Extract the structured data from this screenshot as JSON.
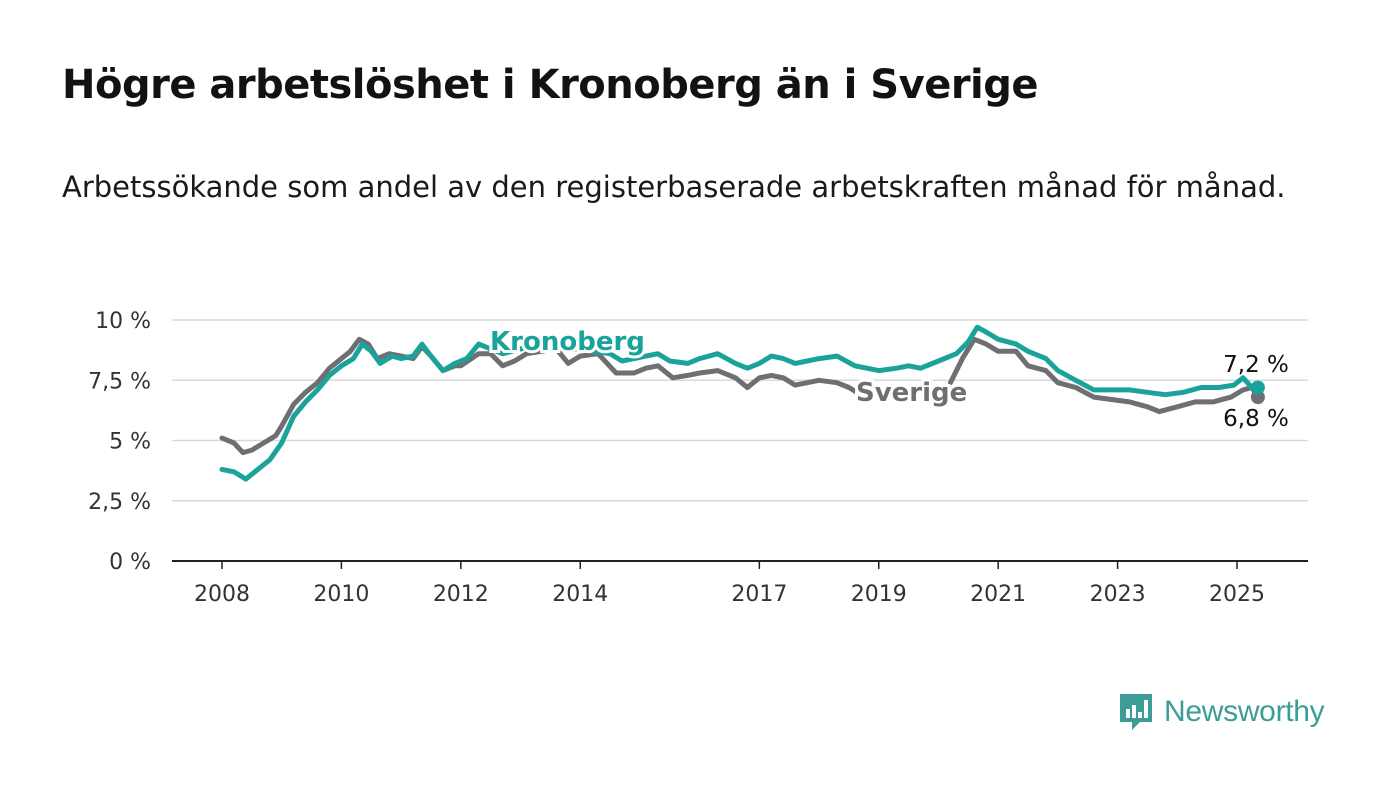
{
  "title": "Högre arbetslöshet i Kronoberg än i Sverige",
  "subtitle": "Arbetssökande som andel av den registerbaserade arbetskraften månad för månad.",
  "brand": {
    "name": "Newsworthy",
    "color": "#3b9d96",
    "icon": "newsworthy-logo-icon"
  },
  "chart_data": {
    "type": "line",
    "ylim": [
      0,
      10
    ],
    "xlim": [
      2007.8,
      2026.2
    ],
    "y_ticks": [
      {
        "value": 0,
        "label": "0 %"
      },
      {
        "value": 2.5,
        "label": "2,5 %"
      },
      {
        "value": 5,
        "label": "5 %"
      },
      {
        "value": 7.5,
        "label": "7,5 %"
      },
      {
        "value": 10,
        "label": "10 %"
      }
    ],
    "x_ticks": [
      {
        "value": 2008,
        "label": "2008"
      },
      {
        "value": 2010,
        "label": "2010"
      },
      {
        "value": 2012,
        "label": "2012"
      },
      {
        "value": 2014,
        "label": "2014"
      },
      {
        "value": 2017,
        "label": "2017"
      },
      {
        "value": 2019,
        "label": "2019"
      },
      {
        "value": 2021,
        "label": "2021"
      },
      {
        "value": 2023,
        "label": "2023"
      },
      {
        "value": 2025,
        "label": "2025"
      }
    ],
    "grid": true,
    "series": [
      {
        "name": "Sverige",
        "color": "#6e6e73",
        "label": "Sverige",
        "end_label": "6,8 %",
        "points": [
          [
            2008.0,
            5.1
          ],
          [
            2008.2,
            4.9
          ],
          [
            2008.35,
            4.5
          ],
          [
            2008.5,
            4.6
          ],
          [
            2008.7,
            4.9
          ],
          [
            2008.9,
            5.2
          ],
          [
            2009.0,
            5.6
          ],
          [
            2009.2,
            6.5
          ],
          [
            2009.4,
            7.0
          ],
          [
            2009.6,
            7.4
          ],
          [
            2009.8,
            8.0
          ],
          [
            2010.0,
            8.4
          ],
          [
            2010.15,
            8.7
          ],
          [
            2010.3,
            9.2
          ],
          [
            2010.45,
            9.0
          ],
          [
            2010.6,
            8.4
          ],
          [
            2010.8,
            8.6
          ],
          [
            2011.0,
            8.5
          ],
          [
            2011.2,
            8.4
          ],
          [
            2011.35,
            8.9
          ],
          [
            2011.5,
            8.5
          ],
          [
            2011.7,
            7.9
          ],
          [
            2011.9,
            8.1
          ],
          [
            2012.0,
            8.1
          ],
          [
            2012.3,
            8.6
          ],
          [
            2012.5,
            8.6
          ],
          [
            2012.7,
            8.1
          ],
          [
            2012.9,
            8.3
          ],
          [
            2013.1,
            8.6
          ],
          [
            2013.35,
            8.7
          ],
          [
            2013.6,
            8.8
          ],
          [
            2013.8,
            8.2
          ],
          [
            2014.0,
            8.5
          ],
          [
            2014.3,
            8.6
          ],
          [
            2014.6,
            7.8
          ],
          [
            2014.9,
            7.8
          ],
          [
            2015.1,
            8.0
          ],
          [
            2015.3,
            8.1
          ],
          [
            2015.55,
            7.6
          ],
          [
            2015.8,
            7.7
          ],
          [
            2016.0,
            7.8
          ],
          [
            2016.3,
            7.9
          ],
          [
            2016.6,
            7.6
          ],
          [
            2016.8,
            7.2
          ],
          [
            2017.0,
            7.6
          ],
          [
            2017.2,
            7.7
          ],
          [
            2017.4,
            7.6
          ],
          [
            2017.6,
            7.3
          ],
          [
            2017.8,
            7.4
          ],
          [
            2018.0,
            7.5
          ],
          [
            2018.3,
            7.4
          ],
          [
            2018.5,
            7.2
          ],
          [
            2018.7,
            6.9
          ],
          [
            2018.8,
            7.0
          ]
        ],
        "points_2": [
          [
            2020.2,
            7.4
          ],
          [
            2020.4,
            8.4
          ],
          [
            2020.6,
            9.2
          ],
          [
            2020.8,
            9.0
          ],
          [
            2021.0,
            8.7
          ],
          [
            2021.3,
            8.7
          ],
          [
            2021.5,
            8.1
          ],
          [
            2021.8,
            7.9
          ],
          [
            2022.0,
            7.4
          ],
          [
            2022.3,
            7.2
          ],
          [
            2022.6,
            6.8
          ],
          [
            2022.9,
            6.7
          ],
          [
            2023.2,
            6.6
          ],
          [
            2023.5,
            6.4
          ],
          [
            2023.7,
            6.2
          ],
          [
            2024.0,
            6.4
          ],
          [
            2024.3,
            6.6
          ],
          [
            2024.6,
            6.6
          ],
          [
            2024.9,
            6.8
          ],
          [
            2025.1,
            7.1
          ],
          [
            2025.25,
            7.2
          ],
          [
            2025.35,
            6.8
          ]
        ]
      },
      {
        "name": "Kronoberg",
        "color": "#1aa39a",
        "label": "Kronoberg",
        "end_label": "7,2 %",
        "points": [
          [
            2008.0,
            3.8
          ],
          [
            2008.2,
            3.7
          ],
          [
            2008.4,
            3.4
          ],
          [
            2008.6,
            3.8
          ],
          [
            2008.8,
            4.2
          ],
          [
            2009.0,
            4.9
          ],
          [
            2009.2,
            6.0
          ],
          [
            2009.4,
            6.6
          ],
          [
            2009.6,
            7.1
          ],
          [
            2009.8,
            7.7
          ],
          [
            2010.0,
            8.1
          ],
          [
            2010.2,
            8.4
          ],
          [
            2010.35,
            9.0
          ],
          [
            2010.5,
            8.7
          ],
          [
            2010.65,
            8.2
          ],
          [
            2010.85,
            8.5
          ],
          [
            2011.0,
            8.4
          ],
          [
            2011.2,
            8.5
          ],
          [
            2011.35,
            9.0
          ],
          [
            2011.5,
            8.5
          ],
          [
            2011.7,
            7.9
          ],
          [
            2011.9,
            8.2
          ],
          [
            2012.1,
            8.4
          ],
          [
            2012.3,
            9.0
          ],
          [
            2012.5,
            8.8
          ],
          [
            2012.7,
            8.6
          ],
          [
            2013.0,
            8.8
          ],
          [
            2013.3,
            9.0
          ],
          [
            2013.6,
            8.9
          ],
          [
            2013.9,
            8.8
          ],
          [
            2014.2,
            8.7
          ],
          [
            2014.5,
            8.6
          ],
          [
            2014.7,
            8.3
          ],
          [
            2014.9,
            8.4
          ],
          [
            2015.1,
            8.5
          ],
          [
            2015.3,
            8.6
          ],
          [
            2015.5,
            8.3
          ],
          [
            2015.8,
            8.2
          ],
          [
            2016.0,
            8.4
          ],
          [
            2016.3,
            8.6
          ],
          [
            2016.6,
            8.2
          ],
          [
            2016.8,
            8.0
          ],
          [
            2017.0,
            8.2
          ],
          [
            2017.2,
            8.5
          ],
          [
            2017.4,
            8.4
          ],
          [
            2017.6,
            8.2
          ],
          [
            2017.8,
            8.3
          ],
          [
            2018.0,
            8.4
          ],
          [
            2018.3,
            8.5
          ],
          [
            2018.6,
            8.1
          ],
          [
            2018.8,
            8.0
          ],
          [
            2019.0,
            7.9
          ],
          [
            2019.3,
            8.0
          ],
          [
            2019.5,
            8.1
          ],
          [
            2019.7,
            8.0
          ],
          [
            2020.0,
            8.3
          ],
          [
            2020.3,
            8.6
          ],
          [
            2020.5,
            9.1
          ],
          [
            2020.65,
            9.7
          ],
          [
            2020.8,
            9.5
          ],
          [
            2021.0,
            9.2
          ],
          [
            2021.3,
            9.0
          ],
          [
            2021.5,
            8.7
          ],
          [
            2021.8,
            8.4
          ],
          [
            2022.0,
            7.9
          ],
          [
            2022.3,
            7.5
          ],
          [
            2022.6,
            7.1
          ],
          [
            2022.9,
            7.1
          ],
          [
            2023.2,
            7.1
          ],
          [
            2023.5,
            7.0
          ],
          [
            2023.8,
            6.9
          ],
          [
            2024.1,
            7.0
          ],
          [
            2024.4,
            7.2
          ],
          [
            2024.7,
            7.2
          ],
          [
            2024.95,
            7.3
          ],
          [
            2025.1,
            7.6
          ],
          [
            2025.25,
            7.2
          ],
          [
            2025.35,
            7.2
          ]
        ]
      }
    ]
  }
}
